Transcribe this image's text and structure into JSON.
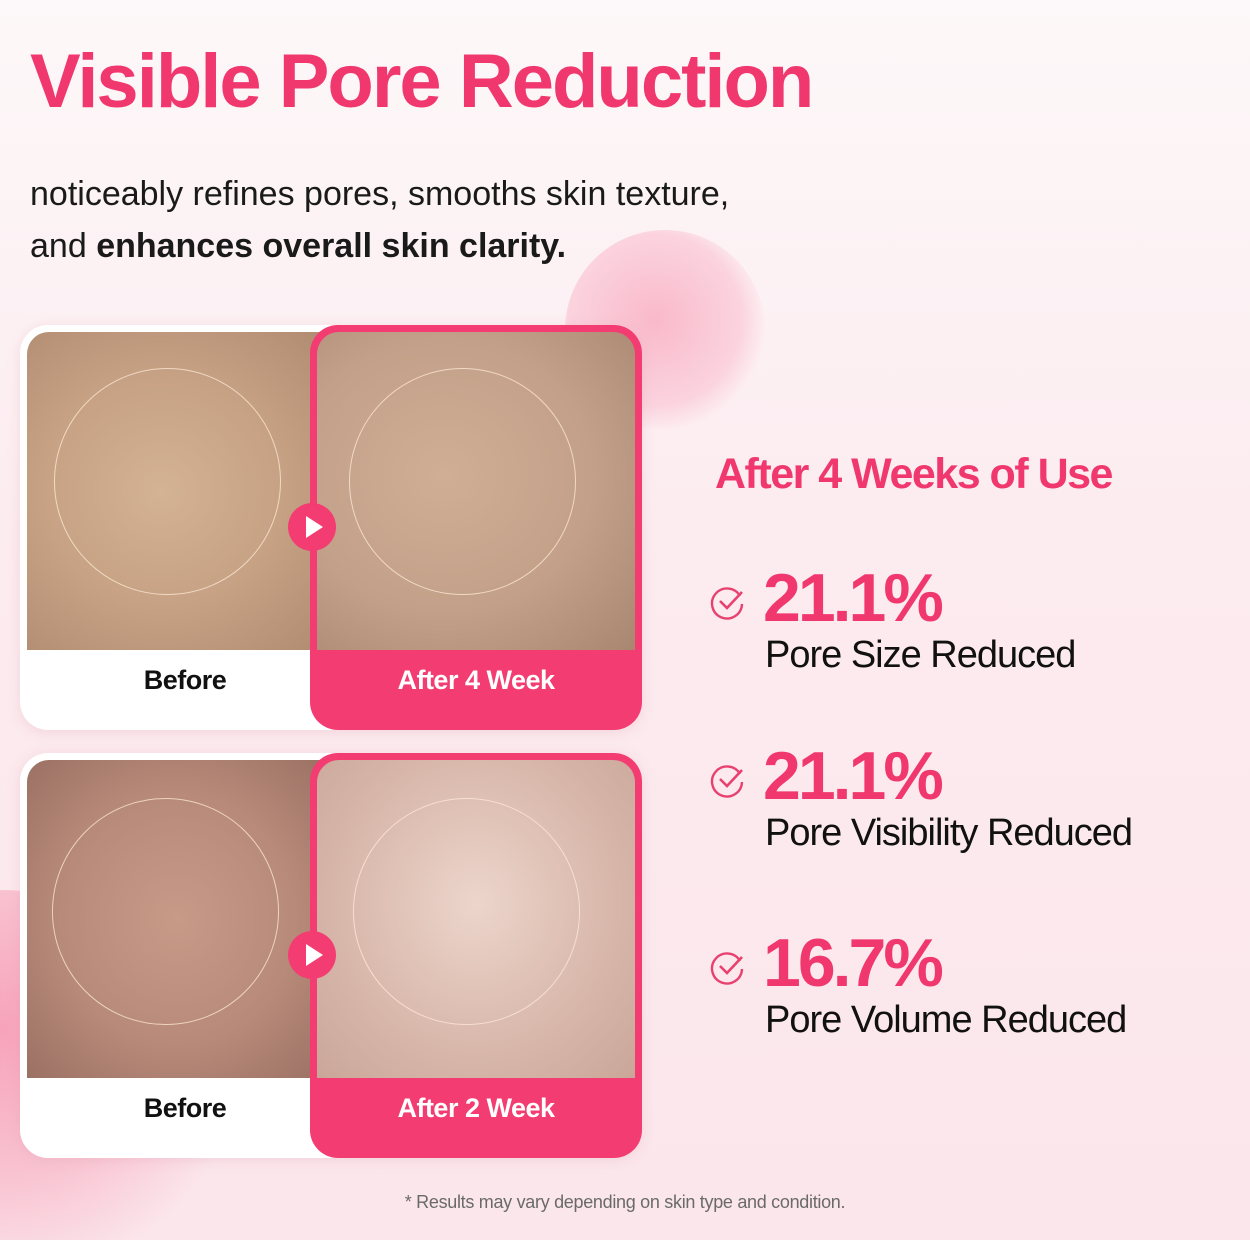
{
  "title": "Visible Pore Reduction",
  "subtitle": {
    "line1": "noticeably refines pores, smooths skin texture,",
    "line2_normal": "and ",
    "line2_bold": "enhances overall skin clarity."
  },
  "comparisons": [
    {
      "before_label": "Before",
      "after_label": "After 4 Week"
    },
    {
      "before_label": "Before",
      "after_label": "After 2 Week"
    }
  ],
  "results": {
    "heading": "After 4 Weeks of Use",
    "items": [
      {
        "value": "21.1%",
        "label": "Pore Size Reduced",
        "icon": "check-circle-icon"
      },
      {
        "value": "21.1%",
        "label": "Pore Visibility Reduced",
        "icon": "check-circle-icon"
      },
      {
        "value": "16.7%",
        "label": "Pore Volume Reduced",
        "icon": "check-circle-icon"
      }
    ]
  },
  "footnote": "* Results may vary depending on skin type and condition.",
  "colors": {
    "accent": "#f0386e",
    "text": "#111111",
    "background": "#fcebef"
  }
}
